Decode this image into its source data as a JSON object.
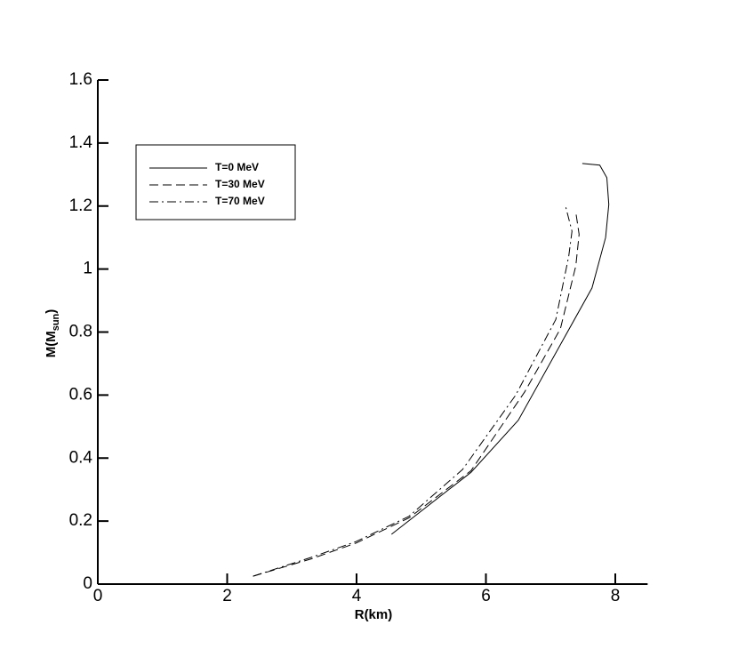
{
  "chart_data": {
    "type": "line",
    "xlabel": "R(km)",
    "ylabel": [
      "M(M",
      "sun",
      ")"
    ],
    "xlim": [
      0,
      8.5
    ],
    "ylim": [
      0,
      1.6
    ],
    "xticks": [
      0,
      2,
      4,
      6,
      8
    ],
    "yticks": [
      0,
      0.2,
      0.4,
      0.6,
      0.8,
      1,
      1.2,
      1.4,
      1.6
    ],
    "series": [
      {
        "name": "T=0 MeV",
        "color": "#000000",
        "dash": "solid",
        "x": [
          4.54,
          5.77,
          6.5,
          7.64,
          7.85,
          7.9,
          7.87,
          7.76,
          7.49
        ],
        "values": [
          0.158,
          0.355,
          0.52,
          0.94,
          1.1,
          1.205,
          1.29,
          1.33,
          1.335
        ]
      },
      {
        "name": "T=30 MeV",
        "color": "#000000",
        "dash": "dashed",
        "x": [
          2.4,
          3.3,
          3.99,
          4.81,
          5.77,
          6.6,
          7.15,
          7.39,
          7.44,
          7.39
        ],
        "values": [
          0.025,
          0.08,
          0.13,
          0.21,
          0.36,
          0.61,
          0.81,
          1.01,
          1.11,
          1.18
        ]
      },
      {
        "name": "T=70 MeV",
        "color": "#000000",
        "dash": "dashdot",
        "x": [
          2.4,
          3.3,
          3.99,
          4.81,
          5.64,
          6.46,
          7.08,
          7.28,
          7.33,
          7.23
        ],
        "values": [
          0.025,
          0.085,
          0.135,
          0.215,
          0.364,
          0.6,
          0.84,
          1.04,
          1.12,
          1.2
        ]
      }
    ]
  }
}
